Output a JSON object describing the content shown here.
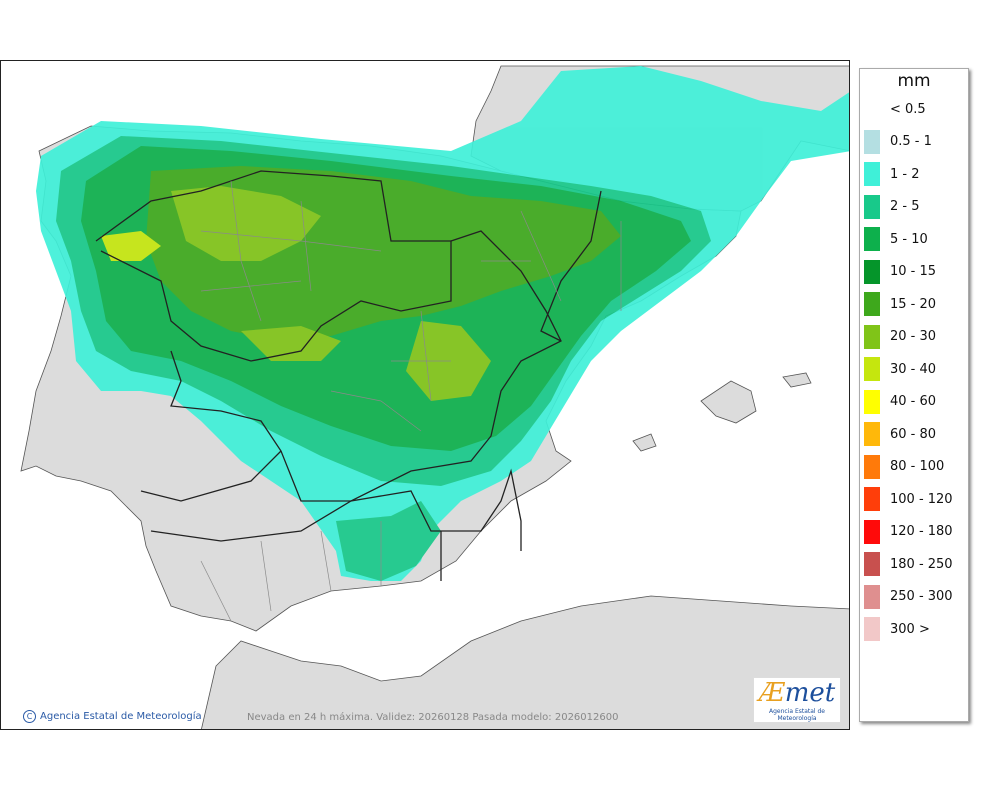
{
  "legend": {
    "unit": "mm",
    "items": [
      {
        "label": "< 0.5",
        "color": "#ffffff"
      },
      {
        "label": "0.5 - 1",
        "color": "#b4dfe2"
      },
      {
        "label": "1 - 2",
        "color": "#3ff0d8"
      },
      {
        "label": "2 - 5",
        "color": "#18c98a"
      },
      {
        "label": "5 - 10",
        "color": "#0db04c"
      },
      {
        "label": "10 - 15",
        "color": "#05952a"
      },
      {
        "label": "15 - 20",
        "color": "#3ea81c"
      },
      {
        "label": "20 - 30",
        "color": "#80c418"
      },
      {
        "label": "30 - 40",
        "color": "#c5e60e"
      },
      {
        "label": "40 - 60",
        "color": "#ffff00"
      },
      {
        "label": "60 - 80",
        "color": "#ffb80a"
      },
      {
        "label": "80 - 100",
        "color": "#ff7a0a"
      },
      {
        "label": "100 - 120",
        "color": "#ff3e0a"
      },
      {
        "label": "120 - 180",
        "color": "#ff0a0a"
      },
      {
        "label": "180 - 250",
        "color": "#c8504e"
      },
      {
        "label": "250 - 300",
        "color": "#df8f8f"
      },
      {
        "label": "300 >",
        "color": "#f2c8c8"
      }
    ]
  },
  "credit": "Agencia Estatal de Meteorología",
  "caption": "Nevada en 24 h máxima. Validez: 20260128 Pasada modelo: 2026012600",
  "logo": {
    "word_a": "Æ",
    "word_b": "met",
    "sub": "Agencia Estatal de Meteorología"
  },
  "colors": {
    "land": "#dcdcdc",
    "sea": "#ffffff",
    "border": "#222222",
    "province": "#8a8a8a"
  }
}
